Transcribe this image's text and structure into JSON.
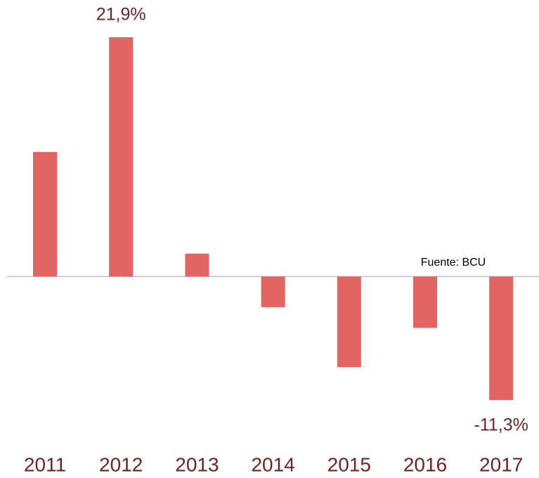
{
  "chart_data": {
    "type": "bar",
    "categories": [
      "2011",
      "2012",
      "2013",
      "2014",
      "2015",
      "2016",
      "2017"
    ],
    "values": [
      11.4,
      21.9,
      2.1,
      -2.8,
      -8.3,
      -4.7,
      -11.3
    ],
    "value_labels": [
      null,
      "21,9%",
      null,
      null,
      null,
      null,
      "-11,3%"
    ],
    "color": "#e26463",
    "annotation": "Fuente: BCU"
  }
}
